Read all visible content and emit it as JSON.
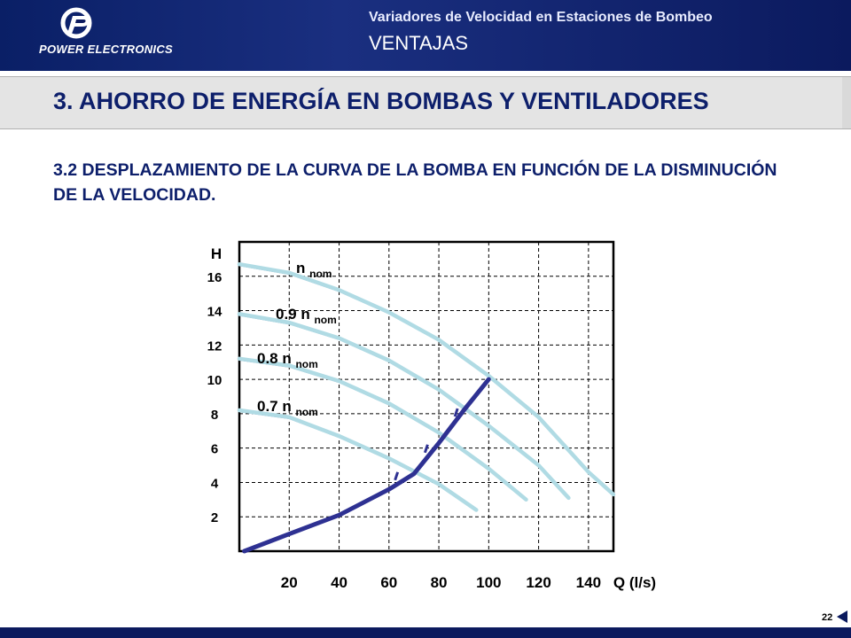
{
  "header": {
    "logo_text": "POWER ELECTRONICS",
    "subtitle": "Variadores de Velocidad en Estaciones de Bombeo",
    "section": "VENTAJAS"
  },
  "title": "3. AHORRO DE ENERGÍA EN BOMBAS Y VENTILADORES",
  "subtitle": "3.2 DESPLAZAMIENTO DE LA CURVA DE LA BOMBA EN FUNCIÓN DE LA DISMINUCIÓN DE LA VELOCIDAD.",
  "page_number": "22",
  "colors": {
    "pump_curve": "#b0dbe4",
    "system_curve": "#2e3192",
    "title_text": "#0d1f6b",
    "header_bg": "#0b1a5e"
  },
  "chart_data": {
    "type": "line",
    "ylabel": "H",
    "xlabel": "Q (l/s)",
    "xlim": [
      0,
      150
    ],
    "ylim": [
      0,
      18
    ],
    "x_ticks": [
      20,
      40,
      60,
      80,
      100,
      120,
      140
    ],
    "y_ticks": [
      2,
      4,
      6,
      8,
      10,
      12,
      14,
      16
    ],
    "grid": true,
    "series": [
      {
        "name": "n",
        "sub": "nom",
        "kind": "pump",
        "points": [
          [
            0,
            16.7
          ],
          [
            20,
            16.2
          ],
          [
            40,
            15.2
          ],
          [
            60,
            13.9
          ],
          [
            80,
            12.3
          ],
          [
            100,
            10.2
          ],
          [
            120,
            7.8
          ],
          [
            140,
            4.6
          ],
          [
            150,
            3.3
          ]
        ]
      },
      {
        "name": "0.9 n",
        "sub": "nom",
        "kind": "pump",
        "points": [
          [
            0,
            13.8
          ],
          [
            20,
            13.3
          ],
          [
            40,
            12.4
          ],
          [
            60,
            11.1
          ],
          [
            80,
            9.4
          ],
          [
            100,
            7.3
          ],
          [
            120,
            5.0
          ],
          [
            132,
            3.1
          ]
        ]
      },
      {
        "name": "0.8 n",
        "sub": "nom",
        "kind": "pump",
        "points": [
          [
            0,
            11.2
          ],
          [
            20,
            10.8
          ],
          [
            40,
            9.9
          ],
          [
            60,
            8.6
          ],
          [
            80,
            6.9
          ],
          [
            100,
            4.8
          ],
          [
            115,
            3.0
          ]
        ]
      },
      {
        "name": "0.7 n",
        "sub": "nom",
        "kind": "pump",
        "points": [
          [
            0,
            8.2
          ],
          [
            20,
            7.8
          ],
          [
            40,
            6.7
          ],
          [
            60,
            5.4
          ],
          [
            80,
            3.9
          ],
          [
            95,
            2.4
          ]
        ]
      },
      {
        "name": "",
        "kind": "system",
        "points": [
          [
            2,
            0.0
          ],
          [
            20,
            1.0
          ],
          [
            40,
            2.1
          ],
          [
            60,
            3.6
          ],
          [
            70,
            4.5
          ],
          [
            80,
            6.3
          ],
          [
            90,
            8.2
          ],
          [
            100,
            10.0
          ]
        ]
      }
    ]
  }
}
